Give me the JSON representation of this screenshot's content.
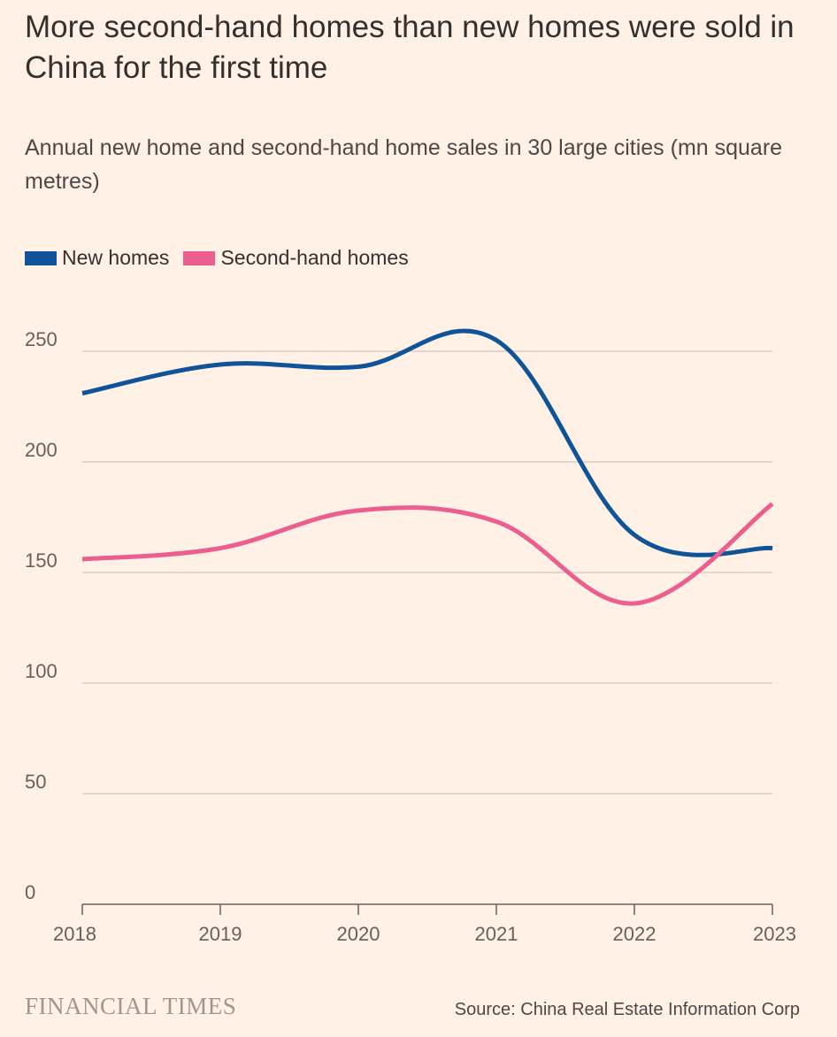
{
  "title": "More second-hand homes than new homes were sold in China for the first time",
  "subtitle": "Annual new home and second-hand home sales in 30 large cities (mn square metres)",
  "brand": "FINANCIAL TIMES",
  "source": "Source: China Real Estate Information Corp",
  "chart_data": {
    "type": "line",
    "x": [
      2018,
      2019,
      2020,
      2021,
      2022,
      2023
    ],
    "y_ticks": [
      0,
      50,
      100,
      150,
      200,
      250
    ],
    "ylim": [
      0,
      250
    ],
    "grid": true,
    "legend_placement": "top-left",
    "series": [
      {
        "name": "New homes",
        "color": "#0f5499",
        "values": [
          231,
          244,
          243,
          255,
          167,
          161
        ]
      },
      {
        "name": "Second-hand homes",
        "color": "#eb5e8d",
        "values": [
          156,
          161,
          178,
          173,
          136,
          181
        ]
      }
    ]
  }
}
